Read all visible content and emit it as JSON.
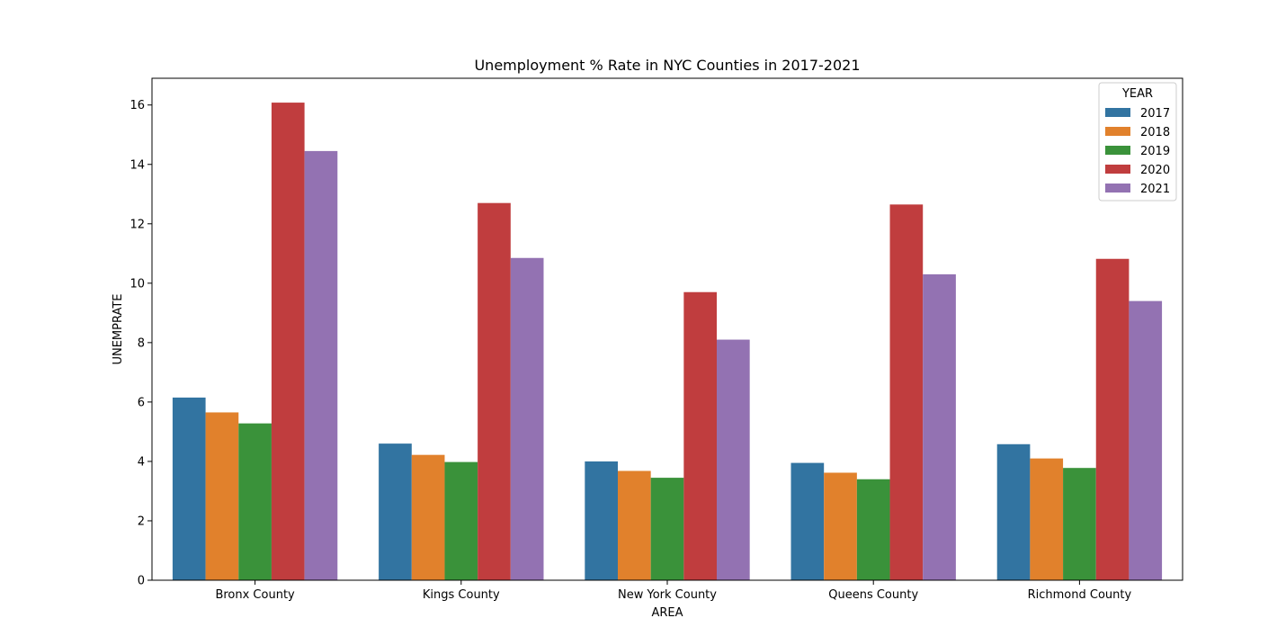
{
  "chart_data": {
    "type": "bar",
    "title": "Unemployment % Rate in NYC Counties in 2017-2021",
    "xlabel": "AREA",
    "ylabel": "UNEMPRATE",
    "categories": [
      "Bronx County",
      "Kings County",
      "New York County",
      "Queens County",
      "Richmond County"
    ],
    "ylim": [
      0,
      16.9
    ],
    "yticks": [
      0,
      2,
      4,
      6,
      8,
      10,
      12,
      14,
      16
    ],
    "grid": false,
    "legend": {
      "title": "YEAR",
      "placement": "top-right"
    },
    "series": [
      {
        "name": "2017",
        "color": "#3274a1",
        "values": [
          6.15,
          4.6,
          4.0,
          3.95,
          4.58
        ]
      },
      {
        "name": "2018",
        "color": "#e1812c",
        "values": [
          5.65,
          4.22,
          3.68,
          3.62,
          4.1
        ]
      },
      {
        "name": "2019",
        "color": "#3a923a",
        "values": [
          5.28,
          3.98,
          3.45,
          3.4,
          3.78
        ]
      },
      {
        "name": "2020",
        "color": "#c03d3e",
        "values": [
          16.08,
          12.7,
          9.7,
          12.65,
          10.82
        ]
      },
      {
        "name": "2021",
        "color": "#9372b2",
        "values": [
          14.45,
          10.85,
          8.1,
          10.3,
          9.4
        ]
      }
    ]
  }
}
